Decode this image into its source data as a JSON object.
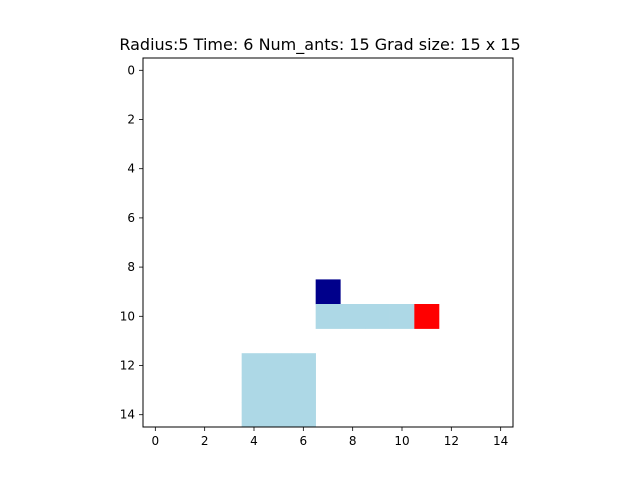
{
  "chart_data": {
    "type": "heatmap",
    "title": "Radius:5 Time: 6 Num_ants: 15 Grad size: 15 x 15",
    "xlabel": "",
    "ylabel": "",
    "grid_size": [
      15,
      15
    ],
    "x_ticks": [
      0,
      2,
      4,
      6,
      8,
      10,
      12,
      14
    ],
    "y_ticks": [
      0,
      2,
      4,
      6,
      8,
      10,
      12,
      14
    ],
    "xlim": [
      -0.5,
      14.5
    ],
    "ylim": [
      14.5,
      -0.5
    ],
    "y_inverted": true,
    "grid": false,
    "background_color": "#ffffff",
    "cells": [
      {
        "row": 9,
        "col": 7,
        "color": "#00008b"
      },
      {
        "row": 10,
        "col": 7,
        "color": "#add8e6"
      },
      {
        "row": 10,
        "col": 8,
        "color": "#add8e6"
      },
      {
        "row": 10,
        "col": 9,
        "color": "#add8e6"
      },
      {
        "row": 10,
        "col": 10,
        "color": "#add8e6"
      },
      {
        "row": 10,
        "col": 11,
        "color": "#ff0000"
      },
      {
        "row": 12,
        "col": 4,
        "color": "#add8e6"
      },
      {
        "row": 12,
        "col": 5,
        "color": "#add8e6"
      },
      {
        "row": 12,
        "col": 6,
        "color": "#add8e6"
      },
      {
        "row": 13,
        "col": 4,
        "color": "#add8e6"
      },
      {
        "row": 13,
        "col": 5,
        "color": "#add8e6"
      },
      {
        "row": 13,
        "col": 6,
        "color": "#add8e6"
      },
      {
        "row": 14,
        "col": 4,
        "color": "#add8e6"
      },
      {
        "row": 14,
        "col": 5,
        "color": "#add8e6"
      },
      {
        "row": 14,
        "col": 6,
        "color": "#add8e6"
      }
    ]
  }
}
